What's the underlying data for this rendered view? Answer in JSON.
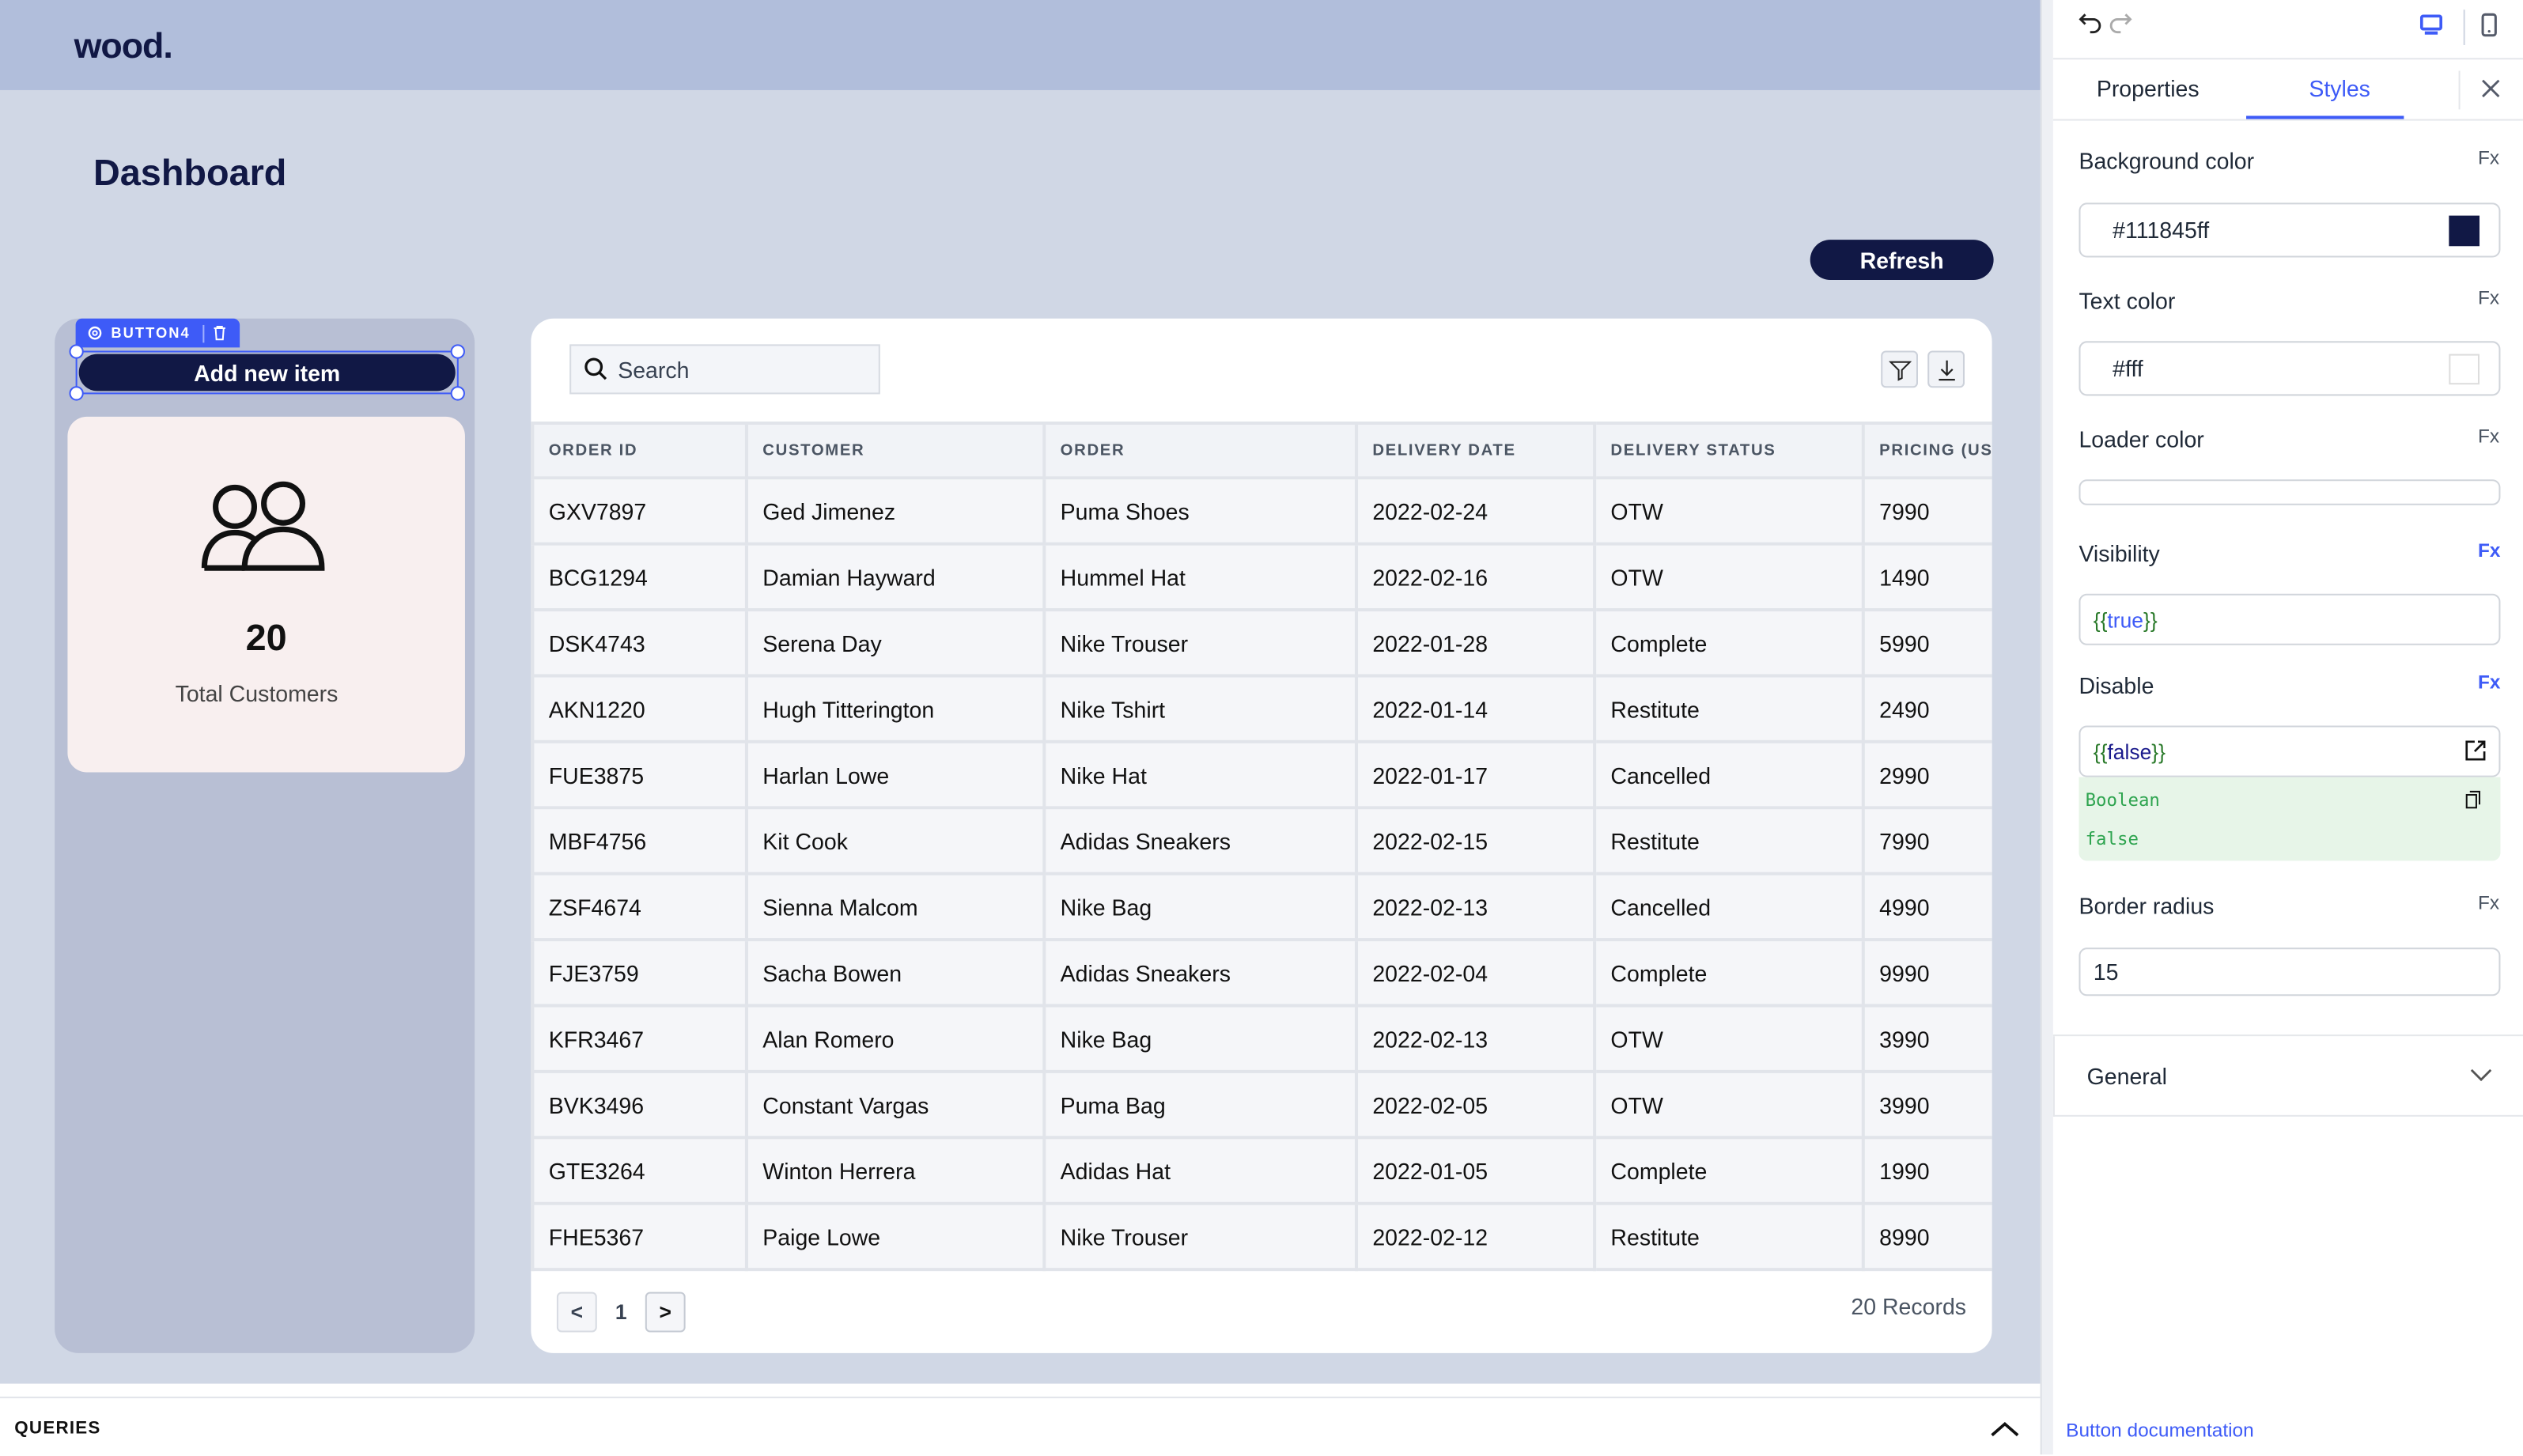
{
  "app": {
    "logo": "wood."
  },
  "canvas": {
    "title": "Dashboard",
    "refresh_label": "Refresh",
    "selected_component": "BUTTON4",
    "add_button_label": "Add new item",
    "stat": {
      "value": "20",
      "label": "Total Customers",
      "icon": "users-icon"
    },
    "table": {
      "search_placeholder": "Search",
      "columns": [
        "ORDER ID",
        "CUSTOMER",
        "ORDER",
        "DELIVERY DATE",
        "DELIVERY STATUS",
        "PRICING (USD)"
      ],
      "rows": [
        [
          "GXV7897",
          "Ged Jimenez",
          "Puma Shoes",
          "2022-02-24",
          "OTW",
          "7990"
        ],
        [
          "BCG1294",
          "Damian Hayward",
          "Hummel Hat",
          "2022-02-16",
          "OTW",
          "1490"
        ],
        [
          "DSK4743",
          "Serena Day",
          "Nike Trouser",
          "2022-01-28",
          "Complete",
          "5990"
        ],
        [
          "AKN1220",
          "Hugh Titterington",
          "Nike Tshirt",
          "2022-01-14",
          "Restitute",
          "2490"
        ],
        [
          "FUE3875",
          "Harlan Lowe",
          "Nike Hat",
          "2022-01-17",
          "Cancelled",
          "2990"
        ],
        [
          "MBF4756",
          "Kit Cook",
          "Adidas Sneakers",
          "2022-02-15",
          "Restitute",
          "7990"
        ],
        [
          "ZSF4674",
          "Sienna Malcom",
          "Nike Bag",
          "2022-02-13",
          "Cancelled",
          "4990"
        ],
        [
          "FJE3759",
          "Sacha Bowen",
          "Adidas Sneakers",
          "2022-02-04",
          "Complete",
          "9990"
        ],
        [
          "KFR3467",
          "Alan Romero",
          "Nike Bag",
          "2022-02-13",
          "OTW",
          "3990"
        ],
        [
          "BVK3496",
          "Constant Vargas",
          "Puma Bag",
          "2022-02-05",
          "OTW",
          "3990"
        ],
        [
          "GTE3264",
          "Winton Herrera",
          "Adidas Hat",
          "2022-01-05",
          "Complete",
          "1990"
        ],
        [
          "FHE5367",
          "Paige Lowe",
          "Nike Trouser",
          "2022-02-12",
          "Restitute",
          "8990"
        ]
      ],
      "pagination": {
        "prev": "<",
        "page": "1",
        "next": ">"
      },
      "records": "20 Records"
    }
  },
  "queries": {
    "label": "QUERIES"
  },
  "panel": {
    "tabs": [
      "Properties",
      "Styles"
    ],
    "active_tab": "Styles",
    "fx": "Fx",
    "background_color": {
      "label": "Background color",
      "value": "#111845ff",
      "swatch": "#111845"
    },
    "text_color": {
      "label": "Text color",
      "value": "#fff",
      "swatch": "#ffffff"
    },
    "loader_color": {
      "label": "Loader color"
    },
    "visibility": {
      "label": "Visibility",
      "value": "{{true}}"
    },
    "disable": {
      "label": "Disable",
      "value": "{{false}}",
      "preview_type": "Boolean",
      "preview_value": "false"
    },
    "border_radius": {
      "label": "Border radius",
      "value": "15"
    },
    "general": {
      "label": "General"
    },
    "doc_link": "Button documentation"
  },
  "colors": {
    "accent": "#3e5bf7",
    "navy": "#111845",
    "preview_green": "#2ea44f"
  }
}
